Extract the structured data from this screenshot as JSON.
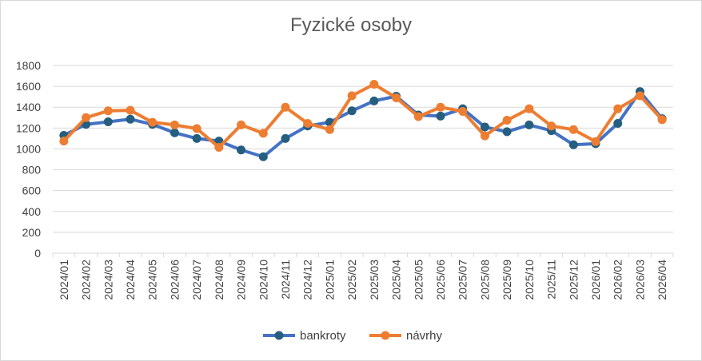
{
  "chart_data": {
    "type": "line",
    "title": "Fyzické osoby",
    "xlabel": "",
    "ylabel": "",
    "ylim": [
      0,
      1800
    ],
    "yticks": [
      0,
      200,
      400,
      600,
      800,
      1000,
      1200,
      1400,
      1600,
      1800
    ],
    "grid": true,
    "legend_position": "bottom",
    "categories": [
      "2024/01",
      "2024/02",
      "2024/03",
      "2024/04",
      "2024/05",
      "2024/06",
      "2024/07",
      "2024/08",
      "2024/09",
      "2024/10",
      "2024/11",
      "2024/12",
      "2025/01",
      "2025/02",
      "2025/03",
      "2025/04",
      "2025/05",
      "2025/06",
      "2025/07",
      "2025/08",
      "2025/09",
      "2025/10",
      "2025/11",
      "2025/12",
      "2026/01",
      "2026/02",
      "2026/03",
      "2026/04"
    ],
    "series": [
      {
        "name": "bankroty",
        "color": "#4472c4",
        "marker_color": "#255e7e",
        "values": [
          1130,
          1235,
          1260,
          1285,
          1235,
          1155,
          1100,
          1075,
          990,
          925,
          1100,
          1220,
          1255,
          1365,
          1460,
          1505,
          1325,
          1315,
          1385,
          1210,
          1165,
          1230,
          1175,
          1040,
          1050,
          1245,
          1550,
          1290
        ]
      },
      {
        "name": "návrhy",
        "color": "#ed7d31",
        "marker_color": "#ed7d31",
        "values": [
          1075,
          1300,
          1365,
          1370,
          1255,
          1230,
          1195,
          1015,
          1230,
          1150,
          1400,
          1245,
          1185,
          1510,
          1620,
          1490,
          1310,
          1400,
          1360,
          1125,
          1275,
          1385,
          1220,
          1185,
          1070,
          1385,
          1510,
          1280
        ]
      }
    ]
  }
}
